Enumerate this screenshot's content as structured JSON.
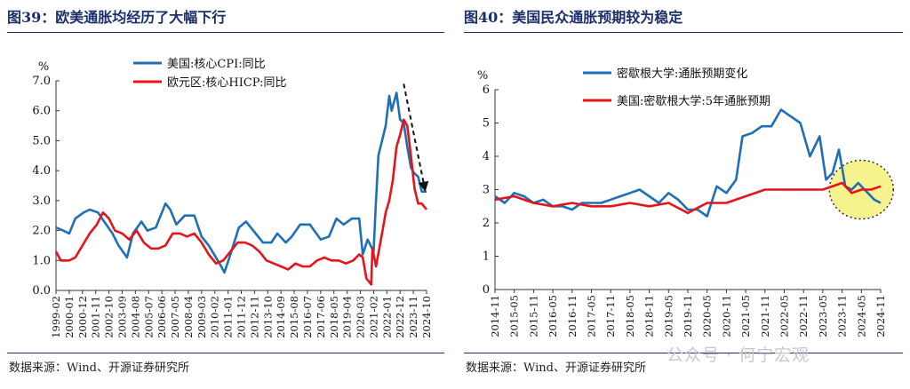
{
  "left": {
    "title": "图39：欧美通胀均经历了大幅下行",
    "source": "数据来源：Wind、开源证券研究所"
  },
  "right": {
    "title": "图40：美国民众通胀预期较为稳定",
    "source": "数据来源：Wind、开源证券研究所"
  },
  "watermark": "公众号 · 何宁宏观",
  "colors": {
    "blue": "#1f6fb5",
    "red": "#e4141a",
    "title": "#1b2f6b",
    "highlight": "#f5f07a"
  },
  "chart_data": [
    {
      "type": "line",
      "ylabel": "%",
      "ylim": [
        0,
        7
      ],
      "yticks": [
        "0.0",
        "1.0",
        "2.0",
        "3.0",
        "4.0",
        "5.0",
        "6.0",
        "7.0"
      ],
      "xticks": [
        "1999-02",
        "2000-01",
        "2000-12",
        "2001-11",
        "2002-10",
        "2003-09",
        "2004-08",
        "2005-07",
        "2006-06",
        "2007-05",
        "2008-04",
        "2009-03",
        "2010-02",
        "2011-01",
        "2011-12",
        "2012-11",
        "2013-10",
        "2014-09",
        "2015-08",
        "2016-07",
        "2017-06",
        "2018-05",
        "2019-04",
        "2020-03",
        "2021-02",
        "2022-01",
        "2022-12",
        "2023-11",
        "2024-10"
      ],
      "x_start": "1999-02",
      "x_end": "2024-10",
      "legend_position": "top",
      "annotation": "dashed arrow pointing downward from the 2022 peak",
      "series": [
        {
          "name": "美国:核心CPI:同比",
          "color": "#1f6fb5",
          "points": [
            [
              "1999-02",
              2.1
            ],
            [
              "1999-08",
              2.0
            ],
            [
              "2000-01",
              1.9
            ],
            [
              "2000-06",
              2.4
            ],
            [
              "2001-01",
              2.6
            ],
            [
              "2001-06",
              2.7
            ],
            [
              "2002-01",
              2.6
            ],
            [
              "2002-06",
              2.3
            ],
            [
              "2003-01",
              1.9
            ],
            [
              "2003-06",
              1.5
            ],
            [
              "2004-01",
              1.1
            ],
            [
              "2004-06",
              1.9
            ],
            [
              "2005-01",
              2.3
            ],
            [
              "2005-06",
              2.0
            ],
            [
              "2006-01",
              2.1
            ],
            [
              "2006-09",
              2.9
            ],
            [
              "2007-01",
              2.7
            ],
            [
              "2007-06",
              2.2
            ],
            [
              "2008-01",
              2.5
            ],
            [
              "2008-09",
              2.5
            ],
            [
              "2009-03",
              1.8
            ],
            [
              "2009-09",
              1.5
            ],
            [
              "2010-06",
              0.9
            ],
            [
              "2010-10",
              0.6
            ],
            [
              "2011-03",
              1.2
            ],
            [
              "2011-10",
              2.1
            ],
            [
              "2012-04",
              2.3
            ],
            [
              "2012-12",
              1.9
            ],
            [
              "2013-06",
              1.6
            ],
            [
              "2014-01",
              1.6
            ],
            [
              "2014-06",
              1.9
            ],
            [
              "2015-01",
              1.6
            ],
            [
              "2015-06",
              1.8
            ],
            [
              "2016-01",
              2.2
            ],
            [
              "2016-09",
              2.2
            ],
            [
              "2017-06",
              1.7
            ],
            [
              "2018-01",
              1.8
            ],
            [
              "2018-07",
              2.4
            ],
            [
              "2019-01",
              2.2
            ],
            [
              "2019-08",
              2.4
            ],
            [
              "2020-02",
              2.4
            ],
            [
              "2020-05",
              1.2
            ],
            [
              "2020-09",
              1.7
            ],
            [
              "2021-02",
              1.3
            ],
            [
              "2021-04",
              3.0
            ],
            [
              "2021-06",
              4.5
            ],
            [
              "2021-12",
              5.5
            ],
            [
              "2022-03",
              6.5
            ],
            [
              "2022-05",
              6.0
            ],
            [
              "2022-09",
              6.6
            ],
            [
              "2022-12",
              5.7
            ],
            [
              "2023-03",
              5.6
            ],
            [
              "2023-06",
              4.8
            ],
            [
              "2023-09",
              4.1
            ],
            [
              "2023-12",
              3.9
            ],
            [
              "2024-03",
              3.8
            ],
            [
              "2024-06",
              3.3
            ],
            [
              "2024-10",
              3.3
            ]
          ]
        },
        {
          "name": "欧元区:核心HICP:同比",
          "color": "#e4141a",
          "points": [
            [
              "1999-02",
              1.3
            ],
            [
              "1999-06",
              1.0
            ],
            [
              "2000-01",
              1.0
            ],
            [
              "2000-06",
              1.1
            ],
            [
              "2000-12",
              1.5
            ],
            [
              "2001-06",
              1.9
            ],
            [
              "2001-12",
              2.2
            ],
            [
              "2002-05",
              2.6
            ],
            [
              "2002-10",
              2.4
            ],
            [
              "2003-03",
              2.0
            ],
            [
              "2003-09",
              1.9
            ],
            [
              "2004-03",
              1.7
            ],
            [
              "2004-09",
              2.0
            ],
            [
              "2005-03",
              1.6
            ],
            [
              "2005-09",
              1.4
            ],
            [
              "2006-03",
              1.4
            ],
            [
              "2006-09",
              1.5
            ],
            [
              "2007-03",
              1.9
            ],
            [
              "2007-09",
              1.9
            ],
            [
              "2008-03",
              1.8
            ],
            [
              "2008-09",
              1.9
            ],
            [
              "2009-03",
              1.6
            ],
            [
              "2009-09",
              1.2
            ],
            [
              "2010-03",
              0.9
            ],
            [
              "2010-09",
              1.0
            ],
            [
              "2011-03",
              1.3
            ],
            [
              "2011-09",
              1.6
            ],
            [
              "2012-03",
              1.6
            ],
            [
              "2012-09",
              1.5
            ],
            [
              "2013-03",
              1.3
            ],
            [
              "2013-09",
              1.0
            ],
            [
              "2014-03",
              0.9
            ],
            [
              "2014-09",
              0.8
            ],
            [
              "2015-03",
              0.7
            ],
            [
              "2015-09",
              0.9
            ],
            [
              "2016-03",
              0.8
            ],
            [
              "2016-09",
              0.8
            ],
            [
              "2017-03",
              1.0
            ],
            [
              "2017-09",
              1.1
            ],
            [
              "2018-03",
              1.0
            ],
            [
              "2018-09",
              1.0
            ],
            [
              "2019-03",
              0.9
            ],
            [
              "2019-09",
              1.0
            ],
            [
              "2020-02",
              1.2
            ],
            [
              "2020-05",
              1.1
            ],
            [
              "2020-08",
              0.4
            ],
            [
              "2020-12",
              0.2
            ],
            [
              "2021-01",
              1.4
            ],
            [
              "2021-04",
              0.8
            ],
            [
              "2021-09",
              1.9
            ],
            [
              "2021-12",
              2.6
            ],
            [
              "2022-03",
              3.0
            ],
            [
              "2022-06",
              3.7
            ],
            [
              "2022-09",
              4.8
            ],
            [
              "2022-12",
              5.2
            ],
            [
              "2023-03",
              5.7
            ],
            [
              "2023-06",
              5.5
            ],
            [
              "2023-09",
              4.5
            ],
            [
              "2023-12",
              3.4
            ],
            [
              "2024-03",
              2.9
            ],
            [
              "2024-06",
              2.9
            ],
            [
              "2024-10",
              2.7
            ]
          ]
        }
      ]
    },
    {
      "type": "line",
      "ylabel": "%",
      "ylim": [
        0,
        6
      ],
      "yticks": [
        "0",
        "1",
        "2",
        "3",
        "4",
        "5",
        "6"
      ],
      "xticks": [
        "2014-11",
        "2015-05",
        "2015-11",
        "2016-05",
        "2016-11",
        "2017-05",
        "2017-11",
        "2018-05",
        "2018-11",
        "2019-05",
        "2019-11",
        "2020-05",
        "2020-11",
        "2021-05",
        "2021-11",
        "2022-05",
        "2022-11",
        "2023-05",
        "2023-11",
        "2024-05",
        "2024-11"
      ],
      "x_start": "2014-11",
      "x_end": "2024-11",
      "legend_position": "top-left",
      "annotation": "yellow dotted ellipse highlighting 2024",
      "series": [
        {
          "name": "密歇根大学:通胀预期变化",
          "color": "#1f6fb5",
          "points": [
            [
              "2014-11",
              2.8
            ],
            [
              "2015-02",
              2.6
            ],
            [
              "2015-05",
              2.9
            ],
            [
              "2015-08",
              2.8
            ],
            [
              "2015-11",
              2.6
            ],
            [
              "2016-02",
              2.7
            ],
            [
              "2016-05",
              2.5
            ],
            [
              "2016-08",
              2.5
            ],
            [
              "2016-11",
              2.4
            ],
            [
              "2017-02",
              2.6
            ],
            [
              "2017-05",
              2.6
            ],
            [
              "2017-08",
              2.6
            ],
            [
              "2017-11",
              2.7
            ],
            [
              "2018-02",
              2.8
            ],
            [
              "2018-05",
              2.9
            ],
            [
              "2018-08",
              3.0
            ],
            [
              "2018-11",
              2.8
            ],
            [
              "2019-02",
              2.6
            ],
            [
              "2019-05",
              2.9
            ],
            [
              "2019-08",
              2.7
            ],
            [
              "2019-11",
              2.4
            ],
            [
              "2020-02",
              2.4
            ],
            [
              "2020-05",
              2.2
            ],
            [
              "2020-08",
              3.1
            ],
            [
              "2020-11",
              2.9
            ],
            [
              "2021-02",
              3.3
            ],
            [
              "2021-04",
              4.6
            ],
            [
              "2021-07",
              4.7
            ],
            [
              "2021-10",
              4.9
            ],
            [
              "2022-01",
              4.9
            ],
            [
              "2022-04",
              5.4
            ],
            [
              "2022-07",
              5.2
            ],
            [
              "2022-10",
              5.0
            ],
            [
              "2023-01",
              4.0
            ],
            [
              "2023-04",
              4.6
            ],
            [
              "2023-06",
              3.3
            ],
            [
              "2023-08",
              3.5
            ],
            [
              "2023-10",
              4.2
            ],
            [
              "2023-12",
              3.1
            ],
            [
              "2024-02",
              3.0
            ],
            [
              "2024-04",
              3.2
            ],
            [
              "2024-06",
              3.0
            ],
            [
              "2024-09",
              2.7
            ],
            [
              "2024-11",
              2.6
            ]
          ]
        },
        {
          "name": "美国:密歇根大学:5年通胀预期",
          "color": "#e4141a",
          "points": [
            [
              "2014-11",
              2.7
            ],
            [
              "2015-05",
              2.8
            ],
            [
              "2015-11",
              2.6
            ],
            [
              "2016-05",
              2.5
            ],
            [
              "2016-11",
              2.6
            ],
            [
              "2017-05",
              2.5
            ],
            [
              "2017-11",
              2.5
            ],
            [
              "2018-05",
              2.6
            ],
            [
              "2018-11",
              2.5
            ],
            [
              "2019-05",
              2.6
            ],
            [
              "2019-11",
              2.3
            ],
            [
              "2020-05",
              2.6
            ],
            [
              "2020-11",
              2.6
            ],
            [
              "2021-05",
              2.8
            ],
            [
              "2021-11",
              3.0
            ],
            [
              "2022-05",
              3.0
            ],
            [
              "2022-11",
              3.0
            ],
            [
              "2023-05",
              3.0
            ],
            [
              "2023-11",
              3.2
            ],
            [
              "2024-02",
              2.9
            ],
            [
              "2024-05",
              3.0
            ],
            [
              "2024-08",
              3.0
            ],
            [
              "2024-11",
              3.1
            ]
          ]
        }
      ]
    }
  ]
}
